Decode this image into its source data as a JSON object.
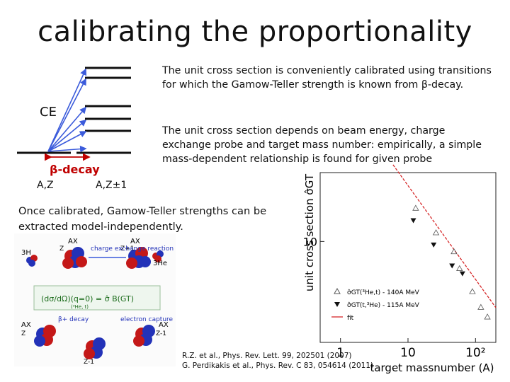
{
  "slide": {
    "title": "calibrating the proportionality",
    "paragraph_1": "The unit cross section is conveniently calibrated using transitions for which the Gamow-Teller strength is known from β-decay.",
    "paragraph_2": "The unit cross section depends on beam energy, charge exchange probe and target mass number: empirically, a simple mass-dependent relationship is found for given probe",
    "paragraph_3": "Once calibrated, Gamow-Teller strengths can be extracted model-independently."
  },
  "level_diagram": {
    "ce_label": "CE",
    "beta_label": "β-decay",
    "parent_label": "A,Z",
    "daughter_label": "A,Z±1",
    "arrow_color": "#3b5bdb",
    "beta_color": "#c00000"
  },
  "inset": {
    "h3_label": "3H",
    "he3_label_top": "3He",
    "ce_reaction_label": "charge exchange reaction",
    "x_top_left": "AX",
    "x_top_right": "AX",
    "z_top_left": "Z",
    "z_top_right": "Z+1",
    "formula": "(dσ/dΩ)(q=0) = σ̂ B(GT)",
    "formula_note": "(³He, t)",
    "beta_plus_label": "β+ decay",
    "ec_label": "electron capture",
    "x_bottom_left": "AX",
    "x_bottom_right": "AX",
    "z_bottom_left": "Z",
    "z_bottom_right": "Z-1",
    "z_bottom_center": "Z-1"
  },
  "chart_data": {
    "type": "scatter",
    "xlabel": "target massnumber (A)",
    "ylabel": "unit cross section σ̂GT",
    "x_scale": "log",
    "y_scale": "log",
    "x_ticks": [
      "1",
      "10",
      "10²"
    ],
    "y_ticks": [
      "10"
    ],
    "legend": [
      {
        "name": "σ̂GT(³He,t) - 140A MeV",
        "marker": "open-triangle"
      },
      {
        "name": "σ̂GT(t,³He) - 115A MeV",
        "marker": "filled-triangle"
      },
      {
        "name": "fit",
        "marker": "line"
      }
    ],
    "legend_position": "bottom-left",
    "fit_color": "#d62728",
    "series": [
      {
        "name": "σ̂GT(³He,t) - 140A MeV",
        "x": [
          13,
          26,
          48,
          58,
          90,
          120,
          150
        ],
        "y": [
          17,
          11.5,
          8.5,
          6.5,
          4.5,
          3.5,
          3.0
        ]
      },
      {
        "name": "σ̂GT(t,³He) - 115A MeV",
        "x": [
          12,
          24,
          45,
          64
        ],
        "y": [
          14,
          9.5,
          6.8,
          6.0
        ]
      }
    ]
  },
  "references": {
    "line_1": "R.Z. et al., Phys. Rev. Lett. 99, 202501 (2007)",
    "line_2": "G. Perdikakis et al., Phys. Rev. C 83, 054614 (2011)"
  }
}
